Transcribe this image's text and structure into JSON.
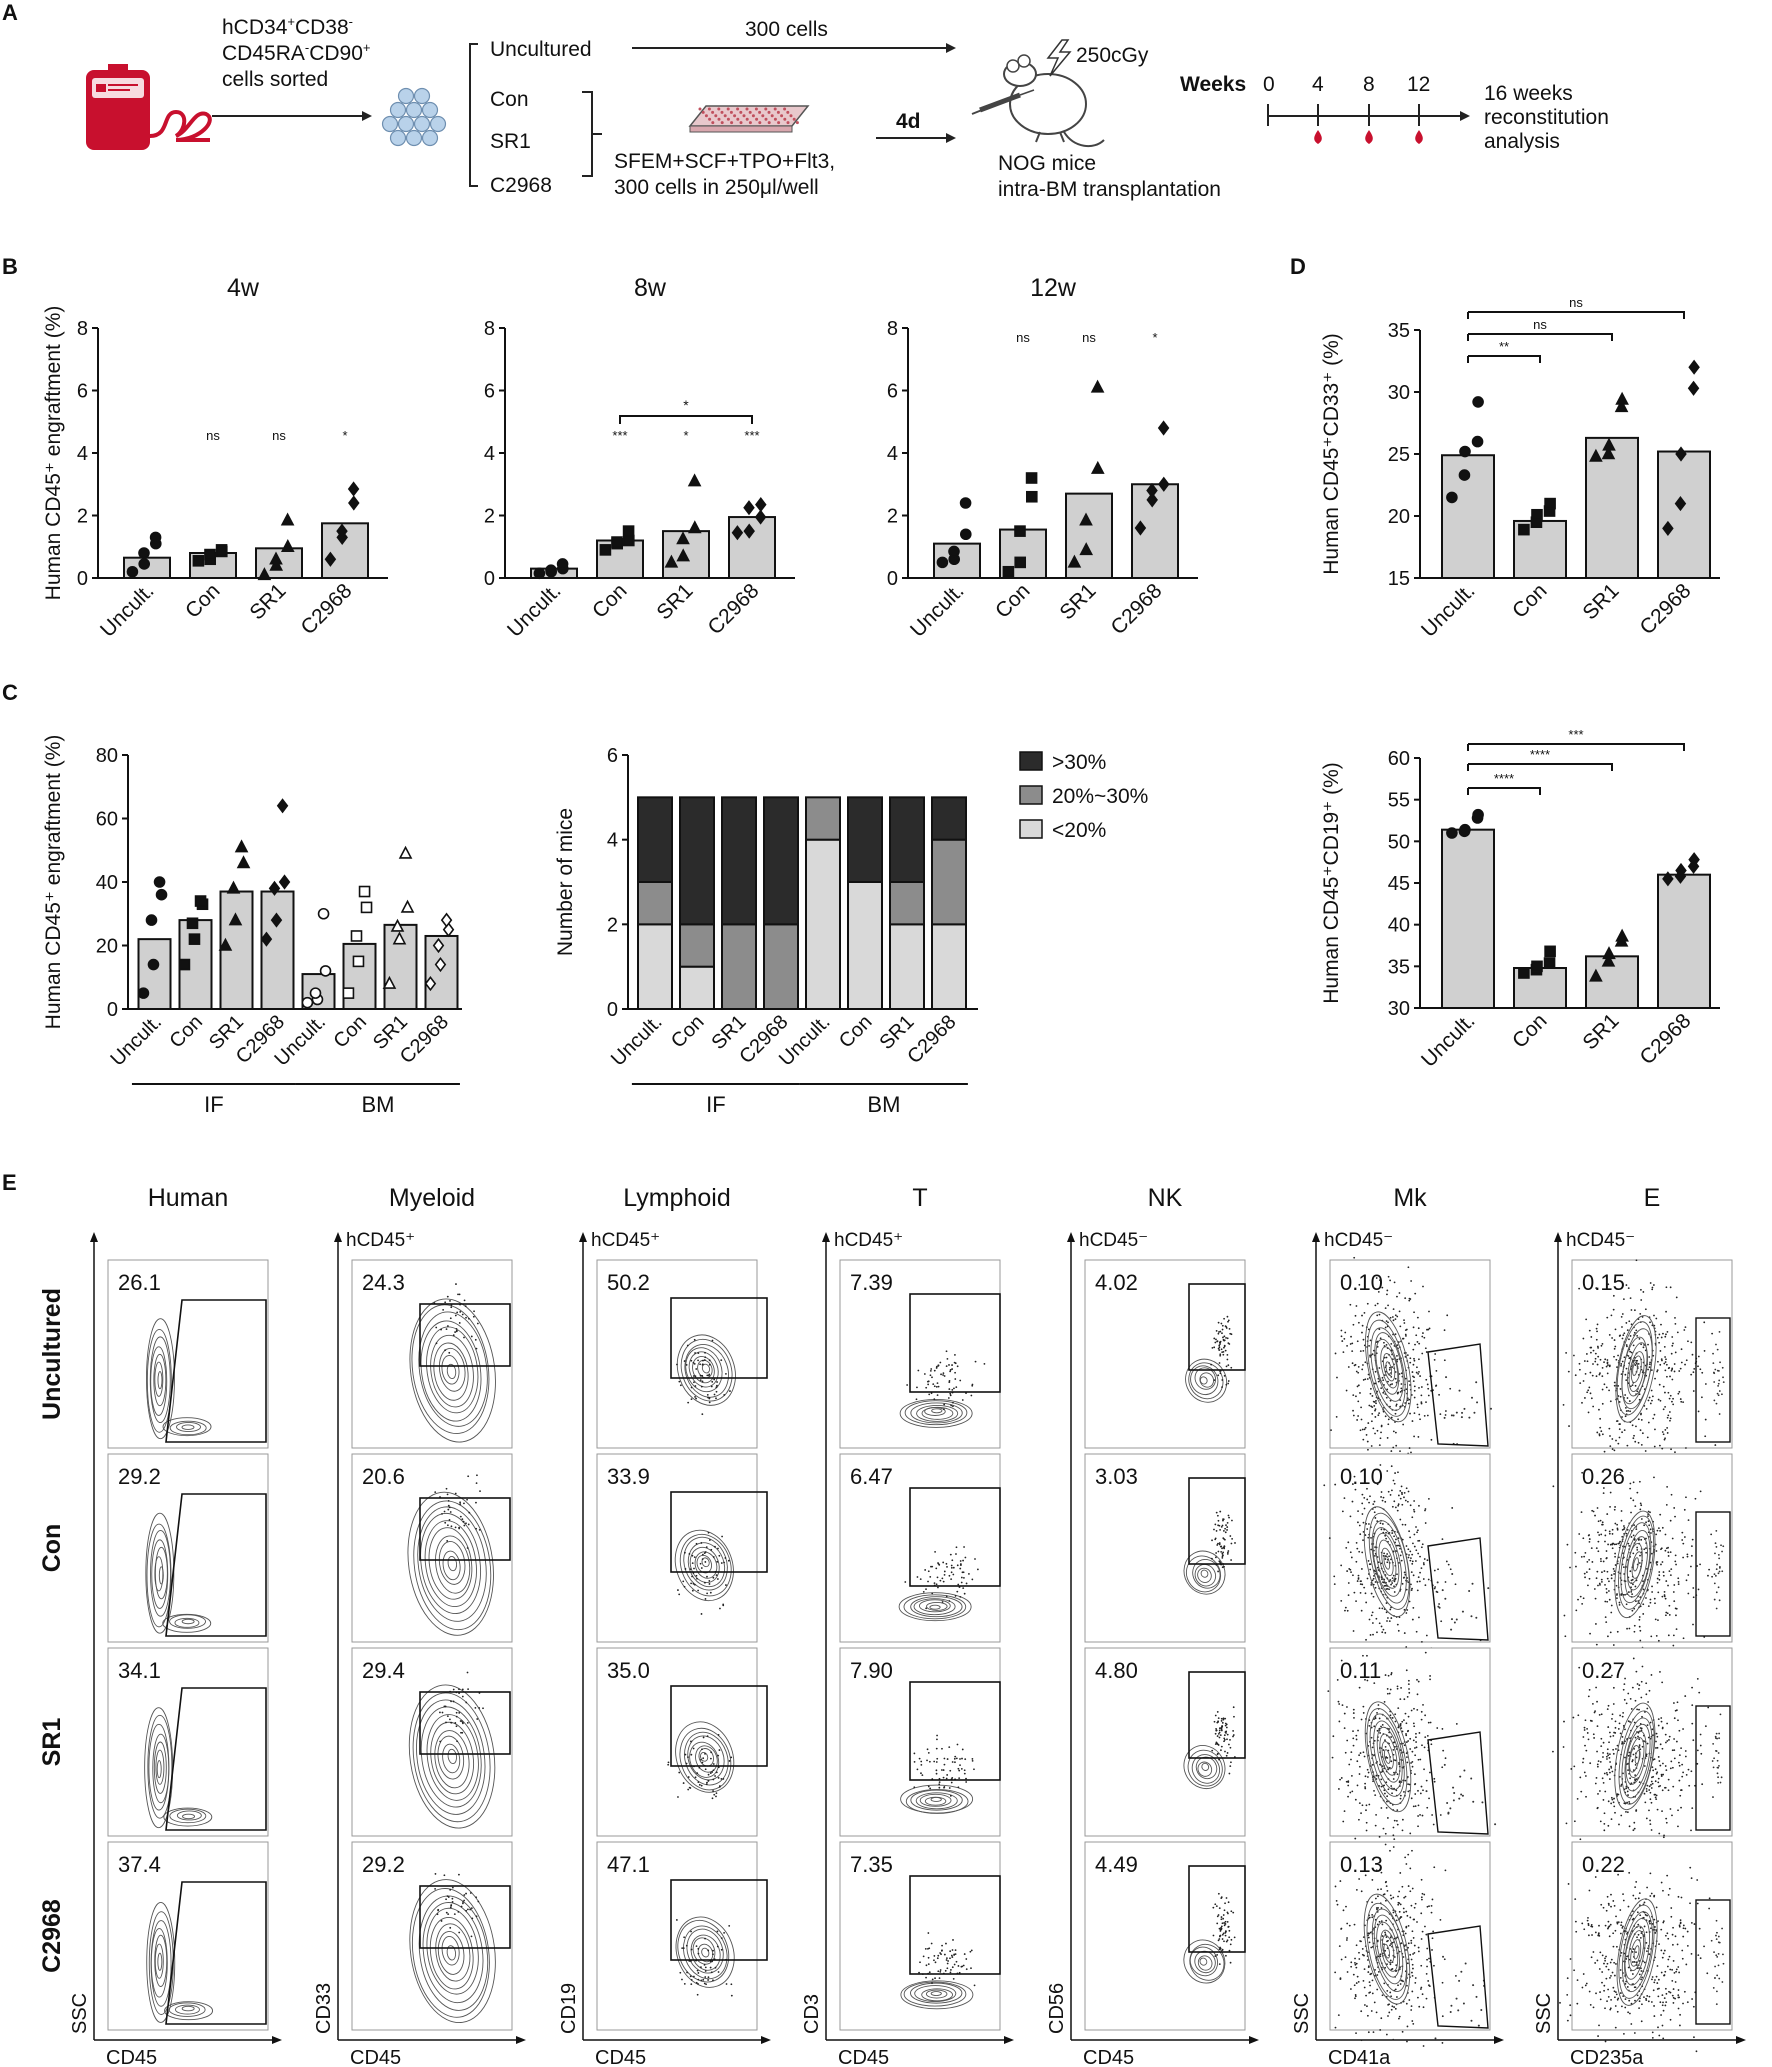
{
  "panel_letters": {
    "A": "A",
    "B": "B",
    "C": "C",
    "D": "D",
    "E": "E"
  },
  "panel_a": {
    "sort_line1_pre": "hCD34",
    "sort_line1_sup1": "+",
    "sort_line1_mid": "CD38",
    "sort_line1_sup2": "-",
    "sort_line2_pre": "CD45RA",
    "sort_line2_sup1": "-",
    "sort_line2_mid": "CD90",
    "sort_line2_sup2": "+",
    "sort_line3": "cells sorted",
    "groups": [
      "Uncultured",
      "Con",
      "SR1",
      "C2968"
    ],
    "cells_300": "300 cells",
    "medium_line1": "SFEM+SCF+TPO+Flt3,",
    "medium_line2": "300 cells in 250μl/well",
    "days": "4d",
    "irradiation": "250cGy",
    "mice_line1": "NOG mice",
    "mice_line2": "intra-BM transplantation",
    "weeks_label": "Weeks",
    "weeks": [
      "0",
      "4",
      "8",
      "12"
    ],
    "analysis_line1": "16 weeks",
    "analysis_line2": "reconstitution",
    "analysis_line3": "analysis"
  },
  "categories": [
    "Uncult.",
    "Con",
    "SR1",
    "C2968"
  ],
  "chart_data": [
    {
      "id": "B-4w",
      "type": "bar",
      "title": "4w",
      "ylabel": "Human CD45⁺ engraftment (%)",
      "categories": [
        "Uncult.",
        "Con",
        "SR1",
        "C2968"
      ],
      "ylim": [
        0,
        8
      ],
      "yticks": [
        0,
        2,
        4,
        6,
        8
      ],
      "values": [
        0.65,
        0.8,
        0.95,
        1.75
      ],
      "points": [
        [
          0.2,
          0.45,
          0.8,
          1.1,
          1.3
        ],
        [
          0.55,
          0.6,
          0.75,
          0.85,
          0.9
        ],
        [
          0.1,
          0.4,
          0.6,
          1.0,
          1.85
        ],
        [
          0.6,
          1.3,
          1.5,
          2.4,
          2.85
        ]
      ],
      "significance": [
        "",
        "ns",
        "ns",
        "*"
      ]
    },
    {
      "id": "B-8w",
      "type": "bar",
      "title": "8w",
      "categories": [
        "Uncult.",
        "Con",
        "SR1",
        "C2968"
      ],
      "ylim": [
        0,
        8
      ],
      "yticks": [
        0,
        2,
        4,
        6,
        8
      ],
      "values": [
        0.3,
        1.2,
        1.5,
        1.95
      ],
      "points": [
        [
          0.15,
          0.2,
          0.25,
          0.3,
          0.45
        ],
        [
          0.9,
          1.1,
          1.15,
          1.2,
          1.5
        ],
        [
          0.5,
          0.7,
          1.25,
          1.6,
          3.1
        ],
        [
          1.45,
          1.5,
          2.25,
          2.35,
          1.95
        ]
      ],
      "significance": [
        "",
        "***",
        "*",
        "***"
      ],
      "bracket": {
        "from": 1,
        "to": 3,
        "label": "*"
      }
    },
    {
      "id": "B-12w",
      "type": "bar",
      "title": "12w",
      "categories": [
        "Uncult.",
        "Con",
        "SR1",
        "C2968"
      ],
      "ylim": [
        0,
        8
      ],
      "yticks": [
        0,
        2,
        4,
        6,
        8
      ],
      "values": [
        1.1,
        1.55,
        2.7,
        3.0
      ],
      "points": [
        [
          0.5,
          0.6,
          0.85,
          1.4,
          2.4
        ],
        [
          0.2,
          0.5,
          1.5,
          2.6,
          3.2
        ],
        [
          0.5,
          0.9,
          1.85,
          3.5,
          6.1
        ],
        [
          1.6,
          2.5,
          2.8,
          3.0,
          4.8
        ]
      ],
      "significance": [
        "",
        "ns",
        "ns",
        "*"
      ]
    },
    {
      "id": "C-engraftment",
      "type": "bar",
      "ylabel": "Human CD45⁺ engraftment (%)",
      "categories": [
        "Uncult.",
        "Con",
        "SR1",
        "C2968",
        "Uncult.",
        "Con",
        "SR1",
        "C2968"
      ],
      "group_labels": [
        "IF",
        "BM"
      ],
      "ylim": [
        0,
        80
      ],
      "yticks": [
        0,
        20,
        40,
        60,
        80
      ],
      "values": [
        22,
        28,
        37,
        37,
        11,
        20.5,
        26.5,
        23
      ],
      "points": [
        [
          5,
          14,
          28,
          36,
          40
        ],
        [
          14,
          22,
          27,
          33,
          34
        ],
        [
          20,
          28,
          38,
          46,
          51
        ],
        [
          22,
          28,
          38,
          40,
          64
        ],
        [
          2,
          3,
          5,
          12,
          30
        ],
        [
          5,
          15,
          23,
          32,
          37
        ],
        [
          8,
          22,
          26,
          32,
          49
        ],
        [
          8,
          14,
          20,
          25,
          28
        ]
      ]
    },
    {
      "id": "C-mice",
      "type": "bar",
      "ylabel": "Number of mice",
      "categories": [
        "Uncult.",
        "Con",
        "SR1",
        "C2968",
        "Uncult.",
        "Con",
        "SR1",
        "C2968"
      ],
      "group_labels": [
        "IF",
        "BM"
      ],
      "ylim": [
        0,
        6
      ],
      "yticks": [
        0,
        2,
        4,
        6
      ],
      "series": [
        {
          "name": "<20%",
          "values": [
            2,
            1,
            0,
            0,
            4,
            3,
            2,
            2
          ],
          "color": "#d9d9d9"
        },
        {
          "name": "20%~30%",
          "values": [
            1,
            1,
            2,
            2,
            1,
            0,
            1,
            2
          ],
          "color": "#8c8c8c"
        },
        {
          "name": ">30%",
          "values": [
            2,
            3,
            3,
            3,
            0,
            2,
            2,
            1
          ],
          "color": "#2b2b2b"
        }
      ],
      "legend_order": [
        ">30%",
        "20%~30%",
        "<20%"
      ]
    },
    {
      "id": "D-CD33",
      "type": "bar",
      "ylabel": "Human CD45⁺CD33⁺ (%)",
      "categories": [
        "Uncult.",
        "Con",
        "SR1",
        "C2968"
      ],
      "ylim": [
        15,
        35
      ],
      "yticks": [
        15,
        20,
        25,
        30,
        35
      ],
      "values": [
        24.9,
        19.6,
        26.3,
        25.2
      ],
      "points": [
        [
          21.5,
          23.3,
          25.2,
          26.0,
          29.2
        ],
        [
          18.9,
          19.5,
          20.1,
          20.4,
          21.0
        ],
        [
          24.8,
          25.0,
          25.7,
          28.8,
          29.4
        ],
        [
          19.0,
          21.0,
          25.0,
          30.3,
          32.0
        ]
      ],
      "brackets": [
        {
          "from": 0,
          "to": 1,
          "label": "**"
        },
        {
          "from": 0,
          "to": 2,
          "label": "ns"
        },
        {
          "from": 0,
          "to": 3,
          "label": "ns"
        }
      ]
    },
    {
      "id": "D-CD19",
      "type": "bar",
      "ylabel": "Human CD45⁺CD19⁺ (%)",
      "categories": [
        "Uncult.",
        "Con",
        "SR1",
        "C2968"
      ],
      "ylim": [
        30,
        60
      ],
      "yticks": [
        30,
        35,
        40,
        45,
        50,
        55,
        60
      ],
      "values": [
        51.4,
        34.8,
        36.2,
        46.0
      ],
      "points": [
        [
          51.0,
          51.2,
          51.4,
          52.8,
          53.2
        ],
        [
          34.2,
          34.6,
          35.0,
          35.4,
          36.8
        ],
        [
          33.8,
          35.6,
          36.5,
          38.0,
          38.6
        ],
        [
          45.5,
          45.8,
          46.5,
          47.0,
          47.8
        ]
      ],
      "brackets": [
        {
          "from": 0,
          "to": 1,
          "label": "****"
        },
        {
          "from": 0,
          "to": 2,
          "label": "****"
        },
        {
          "from": 0,
          "to": 3,
          "label": "***"
        }
      ]
    }
  ],
  "flow": {
    "columns": [
      {
        "title": "Human",
        "gate": "",
        "xlabel": "CD45",
        "ylabel": "SSC",
        "kind": "human"
      },
      {
        "title": "Myeloid",
        "gate": "hCD45⁺",
        "xlabel": "CD45",
        "ylabel": "CD33",
        "kind": "myeloid"
      },
      {
        "title": "Lymphoid",
        "gate": "hCD45⁺",
        "xlabel": "CD45",
        "ylabel": "CD19",
        "kind": "lymphoid"
      },
      {
        "title": "T",
        "gate": "hCD45⁺",
        "xlabel": "CD45",
        "ylabel": "CD3",
        "kind": "t"
      },
      {
        "title": "NK",
        "gate": "hCD45⁻",
        "xlabel": "CD45",
        "ylabel": "CD56",
        "kind": "nk"
      },
      {
        "title": "Mk",
        "gate": "hCD45⁻",
        "xlabel": "CD41a",
        "ylabel": "SSC",
        "kind": "mk"
      },
      {
        "title": "E",
        "gate": "hCD45⁻",
        "xlabel": "CD235a",
        "ylabel": "SSC",
        "kind": "e"
      }
    ],
    "rows": [
      "Uncultured",
      "Con",
      "SR1",
      "C2968"
    ],
    "values": [
      [
        "26.1",
        "24.3",
        "50.2",
        "7.39",
        "4.02",
        "0.10",
        "0.15"
      ],
      [
        "29.2",
        "20.6",
        "33.9",
        "6.47",
        "3.03",
        "0.10",
        "0.26"
      ],
      [
        "34.1",
        "29.4",
        "35.0",
        "7.90",
        "4.80",
        "0.11",
        "0.27"
      ],
      [
        "37.4",
        "29.2",
        "47.1",
        "7.35",
        "4.49",
        "0.13",
        "0.22"
      ]
    ]
  }
}
